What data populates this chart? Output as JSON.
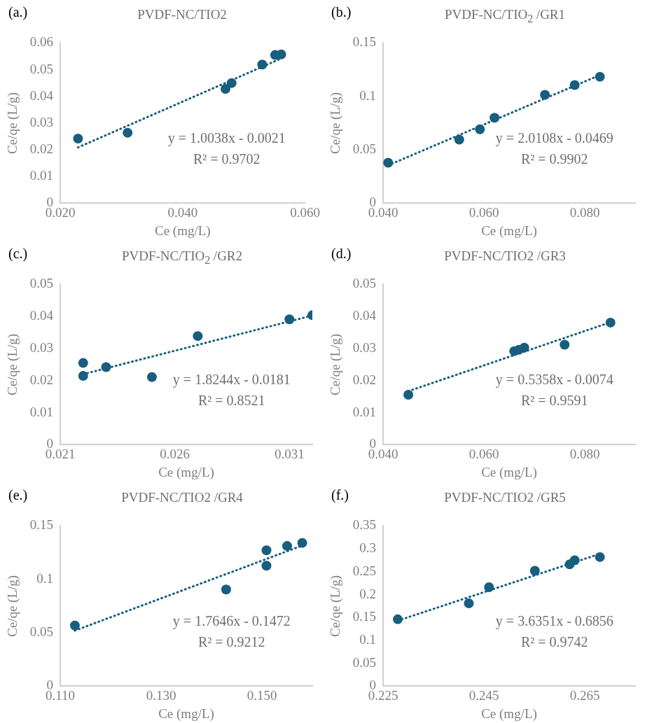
{
  "chart_data": [
    {
      "type": "scatter",
      "title": "PVDF-NC/TIO2",
      "xlabel": "Ce (mg/L)",
      "ylabel": "Ce/qe (L/g)",
      "xlim": [
        0.02,
        0.06
      ],
      "xticks": [
        {
          "value": 0.02,
          "label": "0.020"
        },
        {
          "value": 0.04,
          "label": "0.040"
        },
        {
          "value": 0.06,
          "label": "0.060"
        }
      ],
      "ylim": [
        0,
        0.06
      ],
      "yticks": [
        0,
        0.01,
        0.02,
        0.03,
        0.04,
        0.05,
        0.06
      ],
      "marker": "circle",
      "annotations": [
        "(a.)",
        "y = 1.0038x - 0.0021",
        "R² = 0.9702"
      ],
      "series": [
        {
          "type": "scatter",
          "color": "#175e7f",
          "x": [
            0.0229,
            0.031,
            0.047,
            0.048,
            0.053,
            0.0551,
            0.0561
          ],
          "values": [
            0.0242,
            0.0264,
            0.0428,
            0.045,
            0.0519,
            0.0555,
            0.0557
          ]
        },
        {
          "type": "line",
          "color": "#175e7f",
          "line_style": "dotted",
          "marker": "none",
          "x": [
            0.0229,
            0.0561
          ],
          "values": [
            0.0209,
            0.0542
          ]
        }
      ]
    },
    {
      "type": "scatter",
      "title": "PVDF-NC/TIO$_{2}$ /GR1",
      "xlabel": "Ce (mg/L)",
      "ylabel": "Ce/qe (L/g)",
      "xlim": [
        0.04,
        0.09
      ],
      "xticks": [
        {
          "value": 0.04,
          "label": "0.040"
        },
        {
          "value": 0.06,
          "label": "0.060"
        },
        {
          "value": 0.08,
          "label": "0.080"
        }
      ],
      "ylim": [
        0,
        0.15
      ],
      "yticks": [
        0,
        0.05,
        0.1,
        0.15
      ],
      "marker": "circle",
      "annotations": [
        "(b.)",
        "y = 2.0108x - 0.0469",
        "R² = 0.9902"
      ],
      "series": [
        {
          "type": "scatter",
          "color": "#175e7f",
          "x": [
            0.041,
            0.0551,
            0.0592,
            0.0621,
            0.0721,
            0.078,
            0.083
          ],
          "values": [
            0.0379,
            0.0595,
            0.0692,
            0.08,
            0.1015,
            0.1106,
            0.1184
          ]
        },
        {
          "type": "line",
          "color": "#175e7f",
          "line_style": "dotted",
          "marker": "none",
          "x": [
            0.041,
            0.083
          ],
          "values": [
            0.0355,
            0.12
          ]
        }
      ]
    },
    {
      "type": "scatter",
      "title": "PVDF-NC/TIO$_{2}$ /GR2",
      "xlabel": "Ce (mg/L)",
      "ylabel": "Ce/qe (L/g)",
      "xlim": [
        0.021,
        0.032
      ],
      "xticks": [
        0.021,
        0.026,
        0.031
      ],
      "ylim": [
        0,
        0.05
      ],
      "yticks": [
        0,
        0.01,
        0.02,
        0.03,
        0.04,
        0.05
      ],
      "marker": "circle",
      "annotations": [
        "(c.)",
        "y = 1.8244x - 0.0181",
        "R² = 0.8521"
      ],
      "series": [
        {
          "type": "scatter",
          "color": "#175e7f",
          "x": [
            0.022,
            0.022,
            0.023,
            0.025,
            0.027,
            0.031,
            0.032
          ],
          "values": [
            0.0255,
            0.0215,
            0.0242,
            0.0211,
            0.0339,
            0.0391,
            0.0404
          ]
        },
        {
          "type": "line",
          "color": "#175e7f",
          "line_style": "dotted",
          "marker": "none",
          "x": [
            0.022,
            0.032
          ],
          "values": [
            0.022,
            0.0403
          ]
        }
      ]
    },
    {
      "type": "scatter",
      "title": "PVDF-NC/TIO2 /GR3",
      "xlabel": "Ce (mg/L)",
      "ylabel": "Ce/qe (L/g)",
      "xlim": [
        0.04,
        0.09
      ],
      "xticks": [
        {
          "value": 0.04,
          "label": "0.040"
        },
        {
          "value": 0.06,
          "label": "0.060"
        },
        {
          "value": 0.08,
          "label": "0.080"
        }
      ],
      "ylim": [
        0,
        0.05
      ],
      "yticks": [
        0,
        0.01,
        0.02,
        0.03,
        0.04,
        0.05
      ],
      "marker": "circle",
      "annotations": [
        "(d.)",
        "y = 0.5358x - 0.0074",
        "R² = 0.9591"
      ],
      "series": [
        {
          "type": "scatter",
          "color": "#175e7f",
          "x": [
            0.045,
            0.066,
            0.0669,
            0.068,
            0.076,
            0.0851
          ],
          "values": [
            0.0156,
            0.0292,
            0.0296,
            0.0303,
            0.0312,
            0.0381
          ]
        },
        {
          "type": "line",
          "color": "#175e7f",
          "line_style": "dotted",
          "marker": "none",
          "x": [
            0.045,
            0.0851
          ],
          "values": [
            0.0167,
            0.0382
          ]
        }
      ]
    },
    {
      "type": "scatter",
      "title": "PVDF-NC/TIO2 /GR4",
      "xlabel": "Ce (mg/L)",
      "ylabel": "Ce/qe (L/g)",
      "xlim": [
        0.11,
        0.16
      ],
      "xticks": [
        {
          "value": 0.11,
          "label": "0.110"
        },
        {
          "value": 0.13,
          "label": "0.130"
        },
        {
          "value": 0.15,
          "label": "0.150"
        }
      ],
      "ylim": [
        0,
        0.15
      ],
      "yticks": [
        0,
        0.05,
        0.1,
        0.15
      ],
      "marker": "circle",
      "annotations": [
        "(e.)",
        "y = 1.7646x - 0.1472",
        "R² = 0.9212"
      ],
      "series": [
        {
          "type": "scatter",
          "color": "#175e7f",
          "x": [
            0.1129,
            0.1429,
            0.1509,
            0.1509,
            0.155,
            0.158
          ],
          "values": [
            0.0568,
            0.0905,
            0.1272,
            0.1128,
            0.1312,
            0.1341
          ]
        },
        {
          "type": "line",
          "color": "#175e7f",
          "line_style": "dotted",
          "marker": "none",
          "x": [
            0.1129,
            0.158
          ],
          "values": [
            0.052,
            0.1316
          ]
        }
      ]
    },
    {
      "type": "scatter",
      "title": "PVDF-NC/TIO2 /GR5",
      "xlabel": "Ce (mg/L)",
      "ylabel": "Ce/qe (L/g)",
      "xlim": [
        0.225,
        0.275
      ],
      "xticks": [
        0.225,
        0.245,
        0.265
      ],
      "ylim": [
        0,
        0.35
      ],
      "yticks": [
        0,
        0.05,
        0.1,
        0.15,
        0.2,
        0.25,
        0.3,
        0.35
      ],
      "marker": "circle",
      "annotations": [
        "(f.)",
        "y = 3.6351x - 0.6856",
        "R² = 0.9742"
      ],
      "series": [
        {
          "type": "scatter",
          "color": "#175e7f",
          "x": [
            0.2279,
            0.242,
            0.246,
            0.2551,
            0.262,
            0.263,
            0.268
          ],
          "values": [
            0.146,
            0.181,
            0.216,
            0.252,
            0.266,
            0.275,
            0.282
          ]
        },
        {
          "type": "line",
          "color": "#175e7f",
          "line_style": "dotted",
          "marker": "none",
          "x": [
            0.2279,
            0.268
          ],
          "values": [
            0.143,
            0.289
          ]
        }
      ]
    }
  ]
}
